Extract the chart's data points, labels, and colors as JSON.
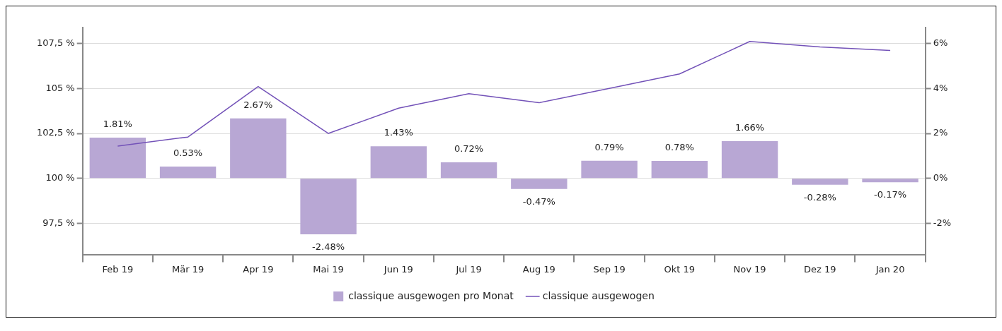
{
  "chart_data": {
    "type": "bar",
    "categories": [
      "Feb 19",
      "Mär 19",
      "Apr 19",
      "Mai 19",
      "Jun 19",
      "Jul 19",
      "Aug 19",
      "Sep 19",
      "Okt 19",
      "Nov 19",
      "Dez 19",
      "Jan 20"
    ],
    "series": [
      {
        "name": "classique ausgewogen pro Monat",
        "axis": "y2",
        "color": "#b8a7d4",
        "values": [
          1.81,
          0.53,
          2.67,
          -2.48,
          1.43,
          0.72,
          -0.47,
          0.79,
          0.78,
          1.66,
          -0.28,
          -0.17
        ],
        "value_labels": [
          "1.81%",
          "0.53%",
          "2.67%",
          "-2.48%",
          "1.43%",
          "0.72%",
          "-0.47%",
          "0.79%",
          "0.78%",
          "1.66%",
          "-0.28%",
          "-0.17%"
        ]
      },
      {
        "name": "classique ausgewogen",
        "type": "line",
        "axis": "y",
        "color": "#7352b8",
        "values": [
          101.8,
          102.3,
          105.1,
          102.5,
          103.9,
          104.7,
          104.2,
          105.0,
          105.8,
          107.6,
          107.3,
          107.1
        ]
      }
    ],
    "ylim": [
      95.75,
      108.375
    ],
    "yticks": [
      {
        "value": 97.5,
        "label": "97,5 %"
      },
      {
        "value": 100,
        "label": "100 %"
      },
      {
        "value": 102.5,
        "label": "102,5 %"
      },
      {
        "value": 105,
        "label": "105 %"
      },
      {
        "value": 107.5,
        "label": "107,5 %"
      }
    ],
    "y2lim": [
      -3.4,
      6.7
    ],
    "y2ticks": [
      {
        "value": -2,
        "label": "-2%"
      },
      {
        "value": 0,
        "label": "0%"
      },
      {
        "value": 2,
        "label": "2%"
      },
      {
        "value": 4,
        "label": "4%"
      },
      {
        "value": 6,
        "label": "6%"
      }
    ],
    "grid": "y",
    "legend": "bottom",
    "marker": "none",
    "line_style": "solid"
  }
}
